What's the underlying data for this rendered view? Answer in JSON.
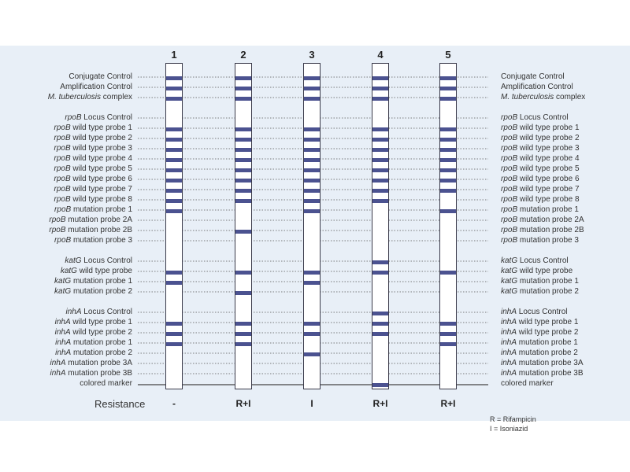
{
  "strips": [
    {
      "number": "1",
      "resistance": "-",
      "bands": [
        0,
        1,
        2,
        4,
        5,
        6,
        7,
        8,
        9,
        10,
        11,
        12,
        17,
        18,
        21,
        22,
        23
      ]
    },
    {
      "number": "2",
      "resistance": "R+I",
      "bands": [
        0,
        1,
        2,
        4,
        5,
        6,
        7,
        8,
        9,
        10,
        11,
        14,
        17,
        19,
        21,
        22,
        23
      ]
    },
    {
      "number": "3",
      "resistance": "I",
      "bands": [
        0,
        1,
        2,
        4,
        5,
        6,
        7,
        8,
        9,
        10,
        11,
        12,
        17,
        18,
        21,
        22,
        24
      ]
    },
    {
      "number": "4",
      "resistance": "R+I",
      "bands": [
        0,
        1,
        2,
        4,
        5,
        6,
        7,
        8,
        9,
        10,
        11,
        16,
        17,
        20,
        21,
        22,
        27
      ]
    },
    {
      "number": "5",
      "resistance": "R+I",
      "bands": [
        0,
        1,
        2,
        4,
        5,
        6,
        7,
        8,
        9,
        10,
        12,
        17,
        21,
        22,
        23
      ]
    }
  ],
  "probes": [
    {
      "italic": "",
      "text": "Conjugate Control"
    },
    {
      "italic": "",
      "text": "Amplification Control"
    },
    {
      "italic": "M. tuberculosis",
      "text": " complex"
    },
    {
      "italic": "rpoB",
      "text": " Locus Control"
    },
    {
      "italic": "rpoB",
      "text": " wild type probe 1"
    },
    {
      "italic": "rpoB",
      "text": " wild type probe 2"
    },
    {
      "italic": "rpoB",
      "text": " wild type probe 3"
    },
    {
      "italic": "rpoB",
      "text": " wild type probe 4"
    },
    {
      "italic": "rpoB",
      "text": " wild type probe 5"
    },
    {
      "italic": "rpoB",
      "text": " wild type probe 6"
    },
    {
      "italic": "rpoB",
      "text": " wild type probe 7"
    },
    {
      "italic": "rpoB",
      "text": " wild type probe 8"
    },
    {
      "italic": "rpoB",
      "text": " mutation probe 1"
    },
    {
      "italic": "rpoB",
      "text": " mutation probe 2A"
    },
    {
      "italic": "rpoB",
      "text": " mutation probe 2B"
    },
    {
      "italic": "rpoB",
      "text": " mutation probe 3"
    },
    {
      "italic": "katG",
      "text": " Locus Control"
    },
    {
      "italic": "katG",
      "text": " wild type probe"
    },
    {
      "italic": "katG",
      "text": " mutation probe 1"
    },
    {
      "italic": "katG",
      "text": " mutation probe 2"
    },
    {
      "italic": "inhA",
      "text": " Locus Control"
    },
    {
      "italic": "inhA",
      "text": " wild type probe 1"
    },
    {
      "italic": "inhA",
      "text": " wild type probe 2"
    },
    {
      "italic": "inhA",
      "text": " mutation probe 1"
    },
    {
      "italic": "inhA",
      "text": " mutation probe 2"
    },
    {
      "italic": "inhA",
      "text": " mutation probe 3A"
    },
    {
      "italic": "inhA",
      "text": " mutation probe 3B"
    },
    {
      "italic": "",
      "text": "colored marker"
    }
  ],
  "resistance_label": "Resistance",
  "legend": {
    "r": "R = Rifampicin",
    "i": "I = Isoniazid"
  },
  "colors": {
    "band": "#4b5290",
    "panel": "#e8eff7"
  }
}
